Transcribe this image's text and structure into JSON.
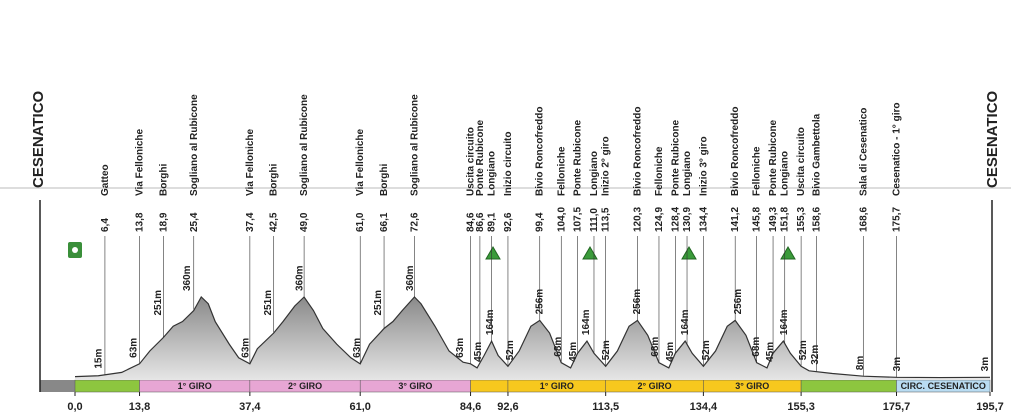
{
  "chart_data": {
    "type": "area",
    "start_label": "CESENATICO",
    "end_label": "CESENATICO",
    "color": "#9c9c9c",
    "xlim": [
      0,
      195.7
    ],
    "xticks": [
      {
        "value": 0,
        "label": "0,0"
      },
      {
        "value": 13.8,
        "label": "13,8"
      },
      {
        "value": 37.4,
        "label": "37,4"
      },
      {
        "value": 61,
        "label": "61,0"
      },
      {
        "value": 84.6,
        "label": "84,6"
      },
      {
        "value": 92.6,
        "label": "92,6"
      },
      {
        "value": 113.5,
        "label": "113,5"
      },
      {
        "value": 134.4,
        "label": "134,4"
      },
      {
        "value": 155.3,
        "label": "155,3"
      },
      {
        "value": 175.7,
        "label": "175,7"
      },
      {
        "value": 195.7,
        "label": "195,7"
      }
    ],
    "x": [
      0,
      5,
      10,
      13.8,
      16,
      18.9,
      21,
      23,
      25.4,
      27,
      28.5,
      30,
      33,
      35,
      37.4,
      39,
      42.5,
      44.5,
      47,
      49,
      51,
      53,
      56,
      59,
      61,
      63,
      66.1,
      68,
      70,
      72.6,
      74,
      77,
      80,
      83,
      84.6,
      86,
      87.5,
      89.1,
      90.5,
      92.6,
      95,
      97.5,
      99.4,
      101.5,
      104,
      106,
      107.5,
      109.5,
      111,
      113.5,
      116,
      118.5,
      120.3,
      122.5,
      124.9,
      127,
      128.4,
      130.5,
      132,
      134.4,
      137,
      139.5,
      141.2,
      143.5,
      145.8,
      148,
      149.3,
      151.5,
      153,
      155.3,
      157,
      162,
      168.6,
      175.7,
      185,
      195.7
    ],
    "values": [
      6,
      10,
      25,
      63,
      120,
      180,
      230,
      251,
      300,
      360,
      330,
      250,
      150,
      90,
      63,
      130,
      200,
      251,
      320,
      360,
      300,
      220,
      150,
      90,
      63,
      150,
      220,
      251,
      300,
      360,
      330,
      230,
      120,
      70,
      63,
      45,
      100,
      164,
      100,
      52,
      120,
      230,
      256,
      200,
      68,
      45,
      110,
      164,
      110,
      52,
      120,
      230,
      256,
      190,
      68,
      45,
      110,
      164,
      110,
      52,
      120,
      230,
      256,
      190,
      68,
      45,
      110,
      164,
      110,
      52,
      32,
      20,
      8,
      3,
      2,
      3
    ],
    "locations": [
      {
        "name": "Gatteo",
        "km": 6.4,
        "km_label": "6,4"
      },
      {
        "name": "Via Felloniche",
        "km": 13.8,
        "km_label": "13,8"
      },
      {
        "name": "Borghi",
        "km": 18.9,
        "km_label": "18,9"
      },
      {
        "name": "Sogliano al Rubicone",
        "km": 25.4,
        "km_label": "25,4"
      },
      {
        "name": "Via Felloniche",
        "km": 37.4,
        "km_label": "37,4"
      },
      {
        "name": "Borghi",
        "km": 42.5,
        "km_label": "42,5"
      },
      {
        "name": "Sogliano al Rubicone",
        "km": 49,
        "km_label": "49,0"
      },
      {
        "name": "Via Felloniche",
        "km": 61,
        "km_label": "61,0"
      },
      {
        "name": "Borghi",
        "km": 66.1,
        "km_label": "66,1"
      },
      {
        "name": "Sogliano al Rubicone",
        "km": 72.6,
        "km_label": "72,6"
      },
      {
        "name": "Uscita circuito",
        "km": 84.6,
        "km_label": "84,6"
      },
      {
        "name": "Ponte Rubicone",
        "km": 86.6,
        "km_label": "86,6"
      },
      {
        "name": "Longiano",
        "km": 89.1,
        "km_label": "89,1"
      },
      {
        "name": "Inizio circuito",
        "km": 92.6,
        "km_label": "92,6"
      },
      {
        "name": "Bivio Roncofreddo",
        "km": 99.4,
        "km_label": "99,4"
      },
      {
        "name": "Felloniche",
        "km": 104,
        "km_label": "104,0"
      },
      {
        "name": "Ponte Rubicone",
        "km": 107.5,
        "km_label": "107,5"
      },
      {
        "name": "Longiano",
        "km": 111,
        "km_label": "111,0"
      },
      {
        "name": "Inizio 2° giro",
        "km": 113.5,
        "km_label": "113,5"
      },
      {
        "name": "Bivio Roncofreddo",
        "km": 120.3,
        "km_label": "120,3"
      },
      {
        "name": "Felloniche",
        "km": 124.9,
        "km_label": "124,9"
      },
      {
        "name": "Ponte Rubicone",
        "km": 128.4,
        "km_label": "128,4"
      },
      {
        "name": "Longiano",
        "km": 130.9,
        "km_label": "130,9"
      },
      {
        "name": "Inizio 3° giro",
        "km": 134.4,
        "km_label": "134,4"
      },
      {
        "name": "Bivio Roncofreddo",
        "km": 141.2,
        "km_label": "141,2"
      },
      {
        "name": "Felloniche",
        "km": 145.8,
        "km_label": "145,8"
      },
      {
        "name": "Ponte Rubicone",
        "km": 149.3,
        "km_label": "149,3"
      },
      {
        "name": "Longiano",
        "km": 151.8,
        "km_label": "151,8"
      },
      {
        "name": "Uscita circuito",
        "km": 155.3,
        "km_label": "155,3"
      },
      {
        "name": "Bivio Gambettola",
        "km": 158.6,
        "km_label": "158,6"
      },
      {
        "name": "Sala di Cesenatico",
        "km": 168.6,
        "km_label": "168,6"
      },
      {
        "name": "Cesenatico - 1° giro",
        "km": 175.7,
        "km_label": "175,7"
      }
    ],
    "elevation_labels": [
      {
        "x": 5,
        "value": 15,
        "label": "15m"
      },
      {
        "x": 12.5,
        "value": 63,
        "label": "63m"
      },
      {
        "x": 17.8,
        "value": 251,
        "label": "251m"
      },
      {
        "x": 24,
        "value": 360,
        "label": "360m"
      },
      {
        "x": 36.5,
        "value": 63,
        "label": "63m"
      },
      {
        "x": 41.3,
        "value": 251,
        "label": "251m"
      },
      {
        "x": 48,
        "value": 360,
        "label": "360m"
      },
      {
        "x": 60.3,
        "value": 63,
        "label": "63m"
      },
      {
        "x": 64.8,
        "value": 251,
        "label": "251m"
      },
      {
        "x": 71.6,
        "value": 360,
        "label": "360m"
      },
      {
        "x": 82.3,
        "value": 63,
        "label": "63m"
      },
      {
        "x": 86.2,
        "value": 45,
        "label": "45m"
      },
      {
        "x": 88.8,
        "value": 164,
        "label": "164m"
      },
      {
        "x": 93,
        "value": 52,
        "label": "52m"
      },
      {
        "x": 99.4,
        "value": 256,
        "label": "256m"
      },
      {
        "x": 103.3,
        "value": 68,
        "label": "68m"
      },
      {
        "x": 106.5,
        "value": 45,
        "label": "45m"
      },
      {
        "x": 109.3,
        "value": 164,
        "label": "164m"
      },
      {
        "x": 113.6,
        "value": 52,
        "label": "52m"
      },
      {
        "x": 120.2,
        "value": 256,
        "label": "256m"
      },
      {
        "x": 124,
        "value": 68,
        "label": "68m"
      },
      {
        "x": 127.3,
        "value": 45,
        "label": "45m"
      },
      {
        "x": 130.5,
        "value": 164,
        "label": "164m"
      },
      {
        "x": 135,
        "value": 52,
        "label": "52m"
      },
      {
        "x": 141.8,
        "value": 256,
        "label": "256m"
      },
      {
        "x": 145.6,
        "value": 68,
        "label": "68m"
      },
      {
        "x": 148.6,
        "value": 45,
        "label": "45m"
      },
      {
        "x": 151.6,
        "value": 164,
        "label": "164m"
      },
      {
        "x": 155.7,
        "value": 52,
        "label": "52m"
      },
      {
        "x": 158.3,
        "value": 32,
        "label": "32m"
      },
      {
        "x": 167.9,
        "value": 8,
        "label": "8m"
      },
      {
        "x": 175.8,
        "value": 3,
        "label": "3m"
      },
      {
        "x": 194.6,
        "value": 3,
        "label": "3m"
      }
    ],
    "segments": [
      {
        "from": 0,
        "to": 13.8,
        "color": "#8dc63f"
      },
      {
        "from": 13.8,
        "to": 37.4,
        "color": "#e7a6d4",
        "label": "1° GIRO"
      },
      {
        "from": 37.4,
        "to": 61,
        "color": "#e7a6d4",
        "label": "2° GIRO"
      },
      {
        "from": 61,
        "to": 84.6,
        "color": "#e7a6d4",
        "label": "3° GIRO"
      },
      {
        "from": 84.6,
        "to": 92.6,
        "color": "#f7c81e"
      },
      {
        "from": 92.6,
        "to": 113.5,
        "color": "#f7c81e",
        "label": "1° GIRO"
      },
      {
        "from": 113.5,
        "to": 134.4,
        "color": "#f7c81e",
        "label": "2° GIRO"
      },
      {
        "from": 134.4,
        "to": 155.3,
        "color": "#f7c81e",
        "label": "3° GIRO"
      },
      {
        "from": 155.3,
        "to": 175.7,
        "color": "#8dc63f"
      },
      {
        "from": 175.7,
        "to": 195.7,
        "color": "#b9dcf2",
        "label": "CIRC. CESENATICO"
      }
    ]
  }
}
